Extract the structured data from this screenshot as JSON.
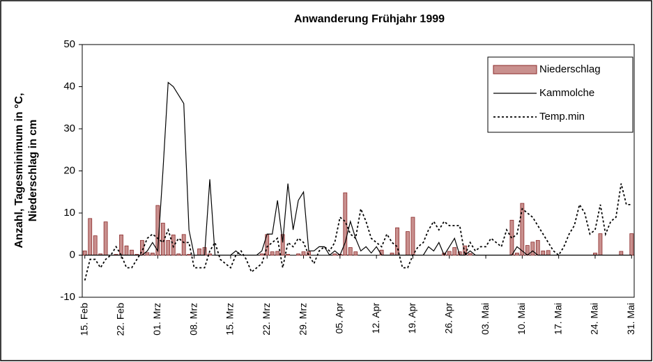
{
  "chart_data": {
    "type": "combo",
    "title": "Anwanderung Frühjahr 1999",
    "y_label": [
      "Anzahl, Tagesminimum in °C,",
      "Niederschlag in cm"
    ],
    "categories": [
      "15. Feb",
      null,
      null,
      null,
      null,
      null,
      null,
      "22. Feb",
      null,
      null,
      null,
      null,
      null,
      null,
      "01. Mrz",
      null,
      null,
      null,
      null,
      null,
      null,
      "08. Mrz",
      null,
      null,
      null,
      null,
      null,
      null,
      "15. Mrz",
      null,
      null,
      null,
      null,
      null,
      null,
      "22. Mrz",
      null,
      null,
      null,
      null,
      null,
      null,
      "29. Mrz",
      null,
      null,
      null,
      null,
      null,
      null,
      "05. Apr",
      null,
      null,
      null,
      null,
      null,
      null,
      "12. Apr",
      null,
      null,
      null,
      null,
      null,
      null,
      "19. Apr",
      null,
      null,
      null,
      null,
      null,
      null,
      "26. Apr",
      null,
      null,
      null,
      null,
      null,
      null,
      "03. Mai",
      null,
      null,
      null,
      null,
      null,
      null,
      "10. Mai",
      null,
      null,
      null,
      null,
      null,
      null,
      "17. Mai",
      null,
      null,
      null,
      null,
      null,
      null,
      "24. Mai",
      null,
      null,
      null,
      null,
      null,
      null,
      "31. Mai"
    ],
    "series": [
      {
        "name": "Niederschlag",
        "kind": "bar",
        "color": "#c9908e",
        "values": [
          1,
          8.7,
          4.6,
          0.3,
          7.9,
          0,
          0.2,
          4.8,
          2.2,
          1.2,
          0.2,
          3.5,
          0.6,
          0.5,
          11.8,
          7.6,
          3.5,
          4.8,
          0.3,
          4.9,
          0.2,
          0,
          1.5,
          1.8,
          0.3,
          0,
          0,
          0,
          0,
          0,
          0,
          0,
          0,
          0,
          0.3,
          4.9,
          0.8,
          0.9,
          4.9,
          0.2,
          0,
          0.3,
          0.8,
          0.8,
          0,
          0,
          0,
          0,
          0.3,
          0.2,
          14.8,
          1.8,
          0.8,
          0,
          0,
          0,
          0,
          1.2,
          0,
          0.5,
          6.5,
          0,
          5.6,
          9,
          0,
          0,
          0,
          0,
          0,
          0.5,
          0.9,
          1.8,
          0.8,
          2.2,
          0.4,
          0,
          0,
          0,
          0,
          0,
          0,
          0,
          8.3,
          0.5,
          12.3,
          2.3,
          3.1,
          3.5,
          1,
          1.1,
          0,
          0,
          0,
          0,
          0,
          0,
          0,
          0,
          0.5,
          5.1,
          0,
          0,
          0,
          0.9,
          0,
          5.1
        ]
      },
      {
        "name": "Kammolche",
        "kind": "line",
        "dashed": false,
        "color": "#000000",
        "values": [
          0,
          0,
          0,
          0,
          0,
          0,
          0,
          0,
          0,
          0,
          0,
          0,
          1,
          3,
          1,
          20,
          41,
          40,
          38,
          36,
          6,
          0,
          0,
          0,
          18,
          0,
          0,
          0,
          0,
          1,
          0,
          0,
          0,
          0,
          1,
          5,
          5,
          13,
          3,
          17,
          6,
          13,
          15,
          1,
          1,
          2,
          2,
          0,
          1,
          0,
          3,
          8,
          4,
          1,
          2,
          0.5,
          2,
          0,
          0,
          0,
          0,
          0,
          0,
          0,
          0,
          0,
          2,
          1,
          3,
          0,
          2,
          4,
          0,
          0,
          1,
          0,
          0,
          0,
          0,
          0,
          0,
          0,
          0,
          2,
          1,
          0,
          1,
          0,
          0,
          0,
          0,
          0,
          0,
          0,
          0,
          0,
          0,
          0,
          0,
          0,
          0,
          0,
          0,
          0,
          0,
          0
        ]
      },
      {
        "name": "Temp.min",
        "kind": "line",
        "dashed": true,
        "color": "#000000",
        "values": [
          -6,
          -1,
          -1,
          -3,
          -1,
          0,
          2,
          0,
          -3,
          -3,
          -1,
          1,
          4,
          5,
          4,
          3,
          6,
          2,
          4,
          3,
          3,
          -3,
          -3,
          -3,
          1,
          3,
          -1,
          -2,
          -3,
          0,
          1,
          -1,
          -4,
          -3,
          -2,
          2,
          3,
          4,
          -3,
          3,
          2,
          4,
          3,
          0,
          -2,
          1,
          2,
          1,
          3,
          9,
          8,
          5,
          4,
          11,
          8,
          4,
          3,
          2,
          5,
          3,
          2,
          -3,
          -3,
          0,
          2,
          3,
          6,
          8,
          6,
          8,
          7,
          7,
          7,
          0,
          3,
          1,
          2,
          2,
          4,
          3,
          2,
          6,
          4,
          5,
          11,
          10,
          9,
          7,
          5,
          3,
          1,
          0,
          2,
          5,
          7,
          12,
          10,
          5,
          6,
          12,
          5,
          8,
          9,
          17,
          12,
          12
        ]
      }
    ],
    "ylim": [
      -10,
      50
    ],
    "yticks": [
      -10,
      0,
      10,
      20,
      30,
      40,
      50
    ],
    "grid": false,
    "legend": "top-right"
  }
}
